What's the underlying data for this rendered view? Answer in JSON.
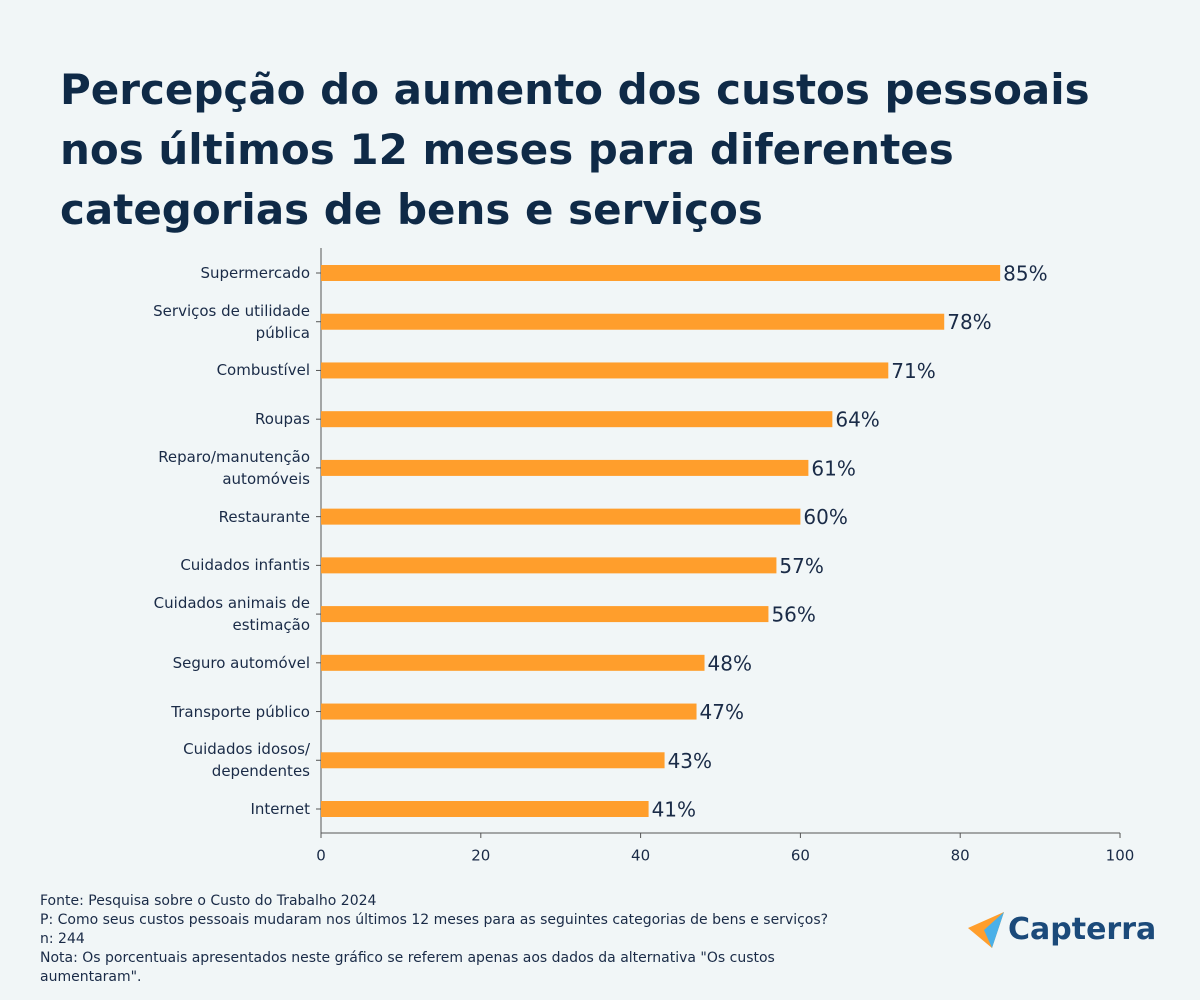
{
  "chart_data": {
    "type": "hbar",
    "title": "Percepção do aumento dos custos pessoais nos últimos 12 meses para diferentes categorias de bens e serviços",
    "categories": [
      "Supermercado",
      "Serviços de utilidade pública",
      "Combustível",
      "Roupas",
      "Reparo/manutenção automóveis",
      "Restaurante",
      "Cuidados infantis",
      "Cuidados animais de estimação",
      "Seguro automóvel",
      "Transporte público",
      "Cuidados idosos/ dependentes",
      "Internet"
    ],
    "values": [
      85,
      78,
      71,
      64,
      61,
      60,
      57,
      56,
      48,
      47,
      43,
      41
    ],
    "value_labels": [
      "85%",
      "78%",
      "71%",
      "64%",
      "61%",
      "60%",
      "57%",
      "56%",
      "48%",
      "47%",
      "43%",
      "41%"
    ],
    "color": "#ff9e2c",
    "xlim": [
      0,
      100
    ],
    "xticks": [
      0,
      20,
      40,
      60,
      80,
      100
    ]
  },
  "footer": {
    "source": "Fonte: Pesquisa sobre o Custo do Trabalho 2024",
    "question": "P: Como seus custos pessoais mudaram nos últimos 12 meses para as seguintes categorias de bens e serviços?",
    "n": "n: 244",
    "note": "Nota: Os porcentuais apresentados neste gráfico se referem apenas aos dados da alternativa \"Os custos aumentaram\"."
  },
  "logo": "Capterra"
}
